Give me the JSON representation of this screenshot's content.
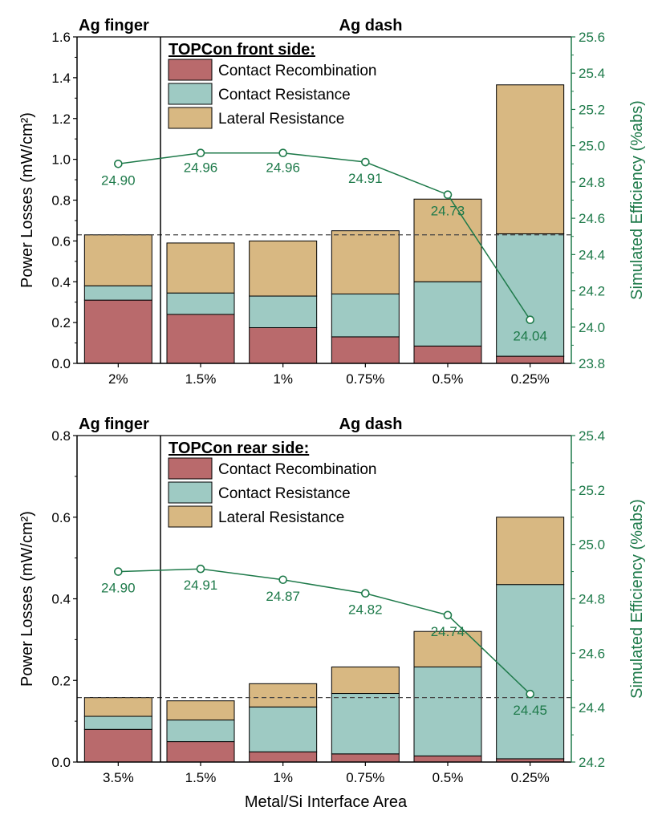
{
  "colors": {
    "recombination": "#b96a6c",
    "contact_resistance": "#9ecac3",
    "lateral_resistance": "#d8b882",
    "efficiency": "#1e7a4a",
    "axis": "#000000",
    "reference_line": "#444444"
  },
  "xlabel": "Metal/Si Interface Area",
  "chart_data": [
    {
      "type": "bar",
      "stacked": true,
      "region_labels": [
        "Ag finger",
        "Ag dash"
      ],
      "legend_title": "TOPCon front side:",
      "legend_placement": "top-left",
      "categories": [
        "2%",
        "1.5%",
        "1%",
        "0.75%",
        "0.5%",
        "0.25%"
      ],
      "series": [
        {
          "name": "Contact Recombination",
          "color_key": "recombination",
          "values": [
            0.31,
            0.24,
            0.175,
            0.13,
            0.085,
            0.035
          ]
        },
        {
          "name": "Contact Resistance",
          "color_key": "contact_resistance",
          "values": [
            0.07,
            0.105,
            0.155,
            0.21,
            0.315,
            0.6
          ]
        },
        {
          "name": "Lateral Resistance",
          "color_key": "lateral_resistance",
          "values": [
            0.25,
            0.245,
            0.27,
            0.31,
            0.405,
            0.73
          ]
        }
      ],
      "reference_line_y": 0.63,
      "ylabel": "Power Losses (mW/cm²)",
      "ylim": [
        0,
        1.6
      ],
      "yticks": [
        "0.0",
        "0.2",
        "0.4",
        "0.6",
        "0.8",
        "1.0",
        "1.2",
        "1.4",
        "1.6"
      ],
      "y2label": "Simulated Efficiency (%abs)",
      "y2lim": [
        23.8,
        25.6
      ],
      "y2ticks": [
        "23.8",
        "24.0",
        "24.2",
        "24.4",
        "24.6",
        "24.8",
        "25.0",
        "25.2",
        "25.4",
        "25.6"
      ],
      "efficiency": [
        24.9,
        24.96,
        24.96,
        24.91,
        24.73,
        24.04
      ],
      "efficiency_labels": [
        "24.90",
        "24.96",
        "24.96",
        "24.91",
        "24.73",
        "24.04"
      ]
    },
    {
      "type": "bar",
      "stacked": true,
      "region_labels": [
        "Ag finger",
        "Ag dash"
      ],
      "legend_title": "TOPCon rear side:",
      "legend_placement": "top-left",
      "categories": [
        "3.5%",
        "1.5%",
        "1%",
        "0.75%",
        "0.5%",
        "0.25%"
      ],
      "series": [
        {
          "name": "Contact Recombination",
          "color_key": "recombination",
          "values": [
            0.08,
            0.05,
            0.025,
            0.02,
            0.015,
            0.008
          ]
        },
        {
          "name": "Contact Resistance",
          "color_key": "contact_resistance",
          "values": [
            0.032,
            0.053,
            0.11,
            0.148,
            0.218,
            0.427
          ]
        },
        {
          "name": "Lateral Resistance",
          "color_key": "lateral_resistance",
          "values": [
            0.046,
            0.047,
            0.057,
            0.065,
            0.087,
            0.165
          ]
        }
      ],
      "reference_line_y": 0.158,
      "ylabel": "Power Losses (mW/cm²)",
      "ylim": [
        0,
        0.8
      ],
      "yticks": [
        "0.0",
        "0.2",
        "0.4",
        "0.6",
        "0.8"
      ],
      "y2label": "Simulated Efficiency (%abs)",
      "y2lim": [
        24.2,
        25.4
      ],
      "y2ticks": [
        "24.2",
        "24.4",
        "24.6",
        "24.8",
        "25.0",
        "25.2",
        "25.4"
      ],
      "efficiency": [
        24.9,
        24.91,
        24.87,
        24.82,
        24.74,
        24.45
      ],
      "efficiency_labels": [
        "24.90",
        "24.91",
        "24.87",
        "24.82",
        "24.74",
        "24.45"
      ]
    }
  ]
}
